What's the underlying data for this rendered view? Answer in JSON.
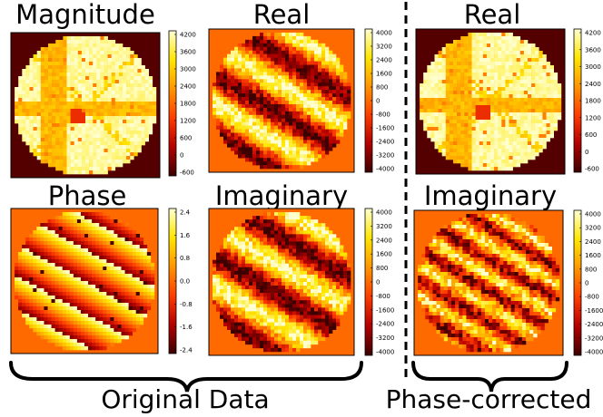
{
  "panels": [
    {
      "id": "magnitude",
      "title": "Magnitude",
      "pattern": "magnitude",
      "colorbar_ticks": [
        "4200",
        "3600",
        "3000",
        "2400",
        "1800",
        "1200",
        "600",
        "0",
        "-600"
      ]
    },
    {
      "id": "real-original",
      "title": "Real",
      "pattern": "stripes-bold",
      "colorbar_ticks": [
        "4000",
        "3200",
        "2400",
        "1600",
        "800",
        "0",
        "-800",
        "-1600",
        "-2400",
        "-3200",
        "-4000"
      ]
    },
    {
      "id": "real-corrected",
      "title": "Real",
      "pattern": "magnitude",
      "colorbar_ticks": [
        "4200",
        "3600",
        "3000",
        "2400",
        "1800",
        "1200",
        "600",
        "0",
        "-600"
      ]
    },
    {
      "id": "phase",
      "title": "Phase",
      "pattern": "phase",
      "colorbar_ticks": [
        "2.4",
        "1.6",
        "0.8",
        "0.0",
        "-0.8",
        "-1.6",
        "-2.4"
      ]
    },
    {
      "id": "imaginary-original",
      "title": "Imaginary",
      "pattern": "stripes-bold",
      "colorbar_ticks": [
        "4000",
        "3200",
        "2400",
        "1600",
        "800",
        "0",
        "-800",
        "-1600",
        "-2400",
        "-3200",
        "-4000"
      ]
    },
    {
      "id": "imaginary-corrected",
      "title": "Imaginary",
      "pattern": "stripes-fine",
      "colorbar_ticks": [
        "4000",
        "3200",
        "2400",
        "1600",
        "800",
        "0",
        "-800",
        "-1600",
        "-2400",
        "-3200",
        "-4000"
      ]
    }
  ],
  "group_labels": {
    "original": "Original Data",
    "corrected": "Phase-corrected"
  },
  "colormap": {
    "name": "hot",
    "stops": [
      "#3d0000",
      "#b40000",
      "#ff3c00",
      "#ff9600",
      "#ffe600",
      "#ffffd2"
    ],
    "background": "#ff6a00",
    "magnitude_background": "#550000"
  }
}
